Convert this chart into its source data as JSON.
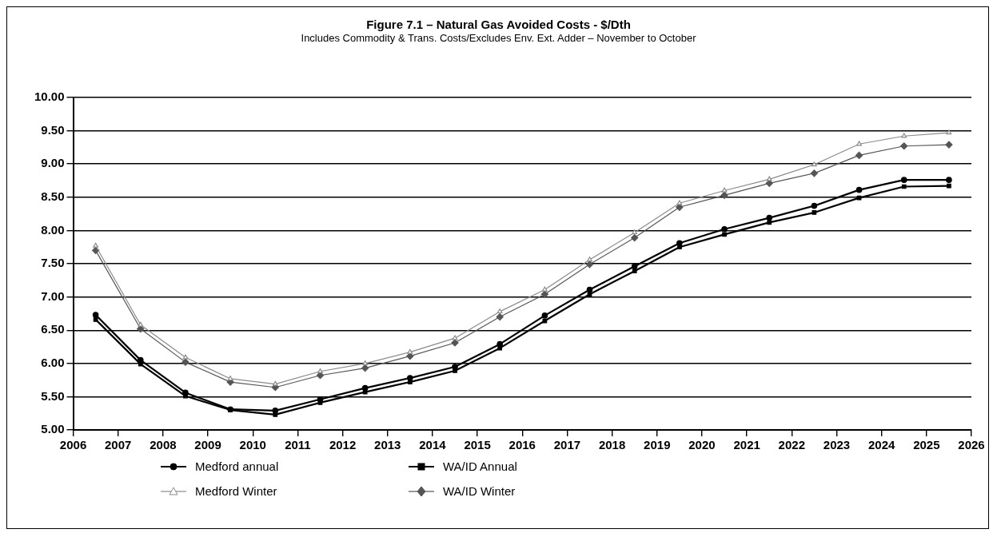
{
  "chart_data": {
    "type": "line",
    "title": "Figure 7.1 – Natural Gas Avoided Costs - $/Dth",
    "subtitle": "Includes Commodity & Trans. Costs/Excludes Env. Ext. Adder – November to October",
    "x": [
      2006.5,
      2007.5,
      2008.5,
      2009.5,
      2010.5,
      2011.5,
      2012.5,
      2013.5,
      2014.5,
      2015.5,
      2016.5,
      2017.5,
      2018.5,
      2019.5,
      2020.5,
      2021.5,
      2022.5,
      2023.5,
      2024.5,
      2025.5
    ],
    "series": [
      {
        "name": "Medford annual",
        "color": "#000000",
        "marker": "circle",
        "values": [
          6.73,
          6.05,
          5.56,
          5.31,
          5.29,
          5.46,
          5.63,
          5.78,
          5.95,
          6.29,
          6.72,
          7.11,
          7.46,
          7.81,
          8.02,
          8.19,
          8.37,
          8.61,
          8.76,
          8.76
        ]
      },
      {
        "name": "WA/ID Annual",
        "color": "#000000",
        "marker": "square",
        "values": [
          6.66,
          5.99,
          5.51,
          5.3,
          5.23,
          5.41,
          5.57,
          5.72,
          5.89,
          6.23,
          6.64,
          7.04,
          7.39,
          7.75,
          7.94,
          8.12,
          8.27,
          8.49,
          8.66,
          8.67
        ]
      },
      {
        "name": "Medford Winter",
        "color": "#8a8a8a",
        "marker": "triangle",
        "values": [
          7.77,
          6.58,
          6.09,
          5.77,
          5.69,
          5.88,
          6.0,
          6.17,
          6.38,
          6.78,
          7.11,
          7.56,
          7.97,
          8.41,
          8.6,
          8.77,
          8.99,
          9.3,
          9.42,
          9.47
        ]
      },
      {
        "name": "WA/ID Winter",
        "color": "#555555",
        "marker": "diamond",
        "values": [
          7.7,
          6.52,
          6.02,
          5.72,
          5.64,
          5.82,
          5.93,
          6.11,
          6.31,
          6.7,
          7.04,
          7.49,
          7.89,
          8.35,
          8.53,
          8.71,
          8.86,
          9.13,
          9.27,
          9.29
        ]
      }
    ],
    "xlim": [
      2006,
      2026
    ],
    "xticks": [
      2006,
      2007,
      2008,
      2009,
      2010,
      2011,
      2012,
      2013,
      2014,
      2015,
      2016,
      2017,
      2018,
      2019,
      2020,
      2021,
      2022,
      2023,
      2024,
      2025,
      2026
    ],
    "ylim": [
      5,
      10
    ],
    "yticks": [
      {
        "value": 5,
        "label": "5.00"
      },
      {
        "value": 5.5,
        "label": "5.50"
      },
      {
        "value": 6,
        "label": "6.00"
      },
      {
        "value": 6.5,
        "label": "6.50"
      },
      {
        "value": 7,
        "label": "7.00"
      },
      {
        "value": 7.5,
        "label": "7.50"
      },
      {
        "value": 8,
        "label": "8.00"
      },
      {
        "value": 8.5,
        "label": "8.50"
      },
      {
        "value": 9,
        "label": "9.00"
      },
      {
        "value": 9.5,
        "label": "9.50"
      },
      {
        "value": 10,
        "label": "10.00"
      }
    ],
    "grid": "y",
    "legend": "bottom",
    "line_style": "solid"
  }
}
